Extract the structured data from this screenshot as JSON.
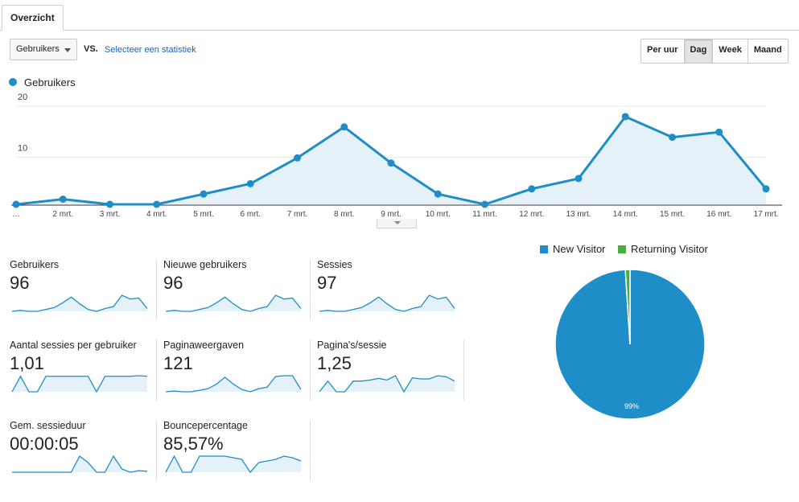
{
  "tab": {
    "label": "Overzicht"
  },
  "toolbar": {
    "metric_select": "Gebruikers",
    "vs_label": "VS.",
    "select_metric_link": "Selecteer een statistiek",
    "period_buttons": [
      "Per uur",
      "Dag",
      "Week",
      "Maand"
    ],
    "active_period": "Dag"
  },
  "colors": {
    "accent": "#1f8dc8",
    "area_fill": "#e5f1f9",
    "new_visitor": "#1f8dc8",
    "returning_visitor": "#4cae3e"
  },
  "chart_data": [
    {
      "type": "area",
      "legend": [
        "Gebruikers"
      ],
      "categories": [
        "…",
        "2 mrt.",
        "3 mrt.",
        "4 mrt.",
        "5 mrt.",
        "6 mrt.",
        "7 mrt.",
        "8 mrt.",
        "9 mrt.",
        "10 mrt.",
        "11 mrt.",
        "12 mrt.",
        "13 mrt.",
        "14 mrt.",
        "15 mrt.",
        "16 mrt.",
        "17 mrt."
      ],
      "series": [
        {
          "name": "Gebruikers",
          "values": [
            0,
            1,
            0,
            0,
            2,
            4,
            9,
            15,
            8,
            2,
            0,
            3,
            5,
            17,
            13,
            14,
            3
          ]
        }
      ],
      "y_ticks": [
        "20",
        "10"
      ],
      "ylim": [
        0,
        20
      ],
      "grid": true
    },
    {
      "type": "pie",
      "legend": [
        "New Visitor",
        "Returning Visitor"
      ],
      "labels": [
        "New Visitor",
        "Returning Visitor"
      ],
      "values": [
        99,
        1
      ],
      "slice_label": "99%"
    }
  ],
  "metrics": [
    {
      "label": "Gebruikers",
      "value": "96",
      "spark": [
        0,
        1,
        0,
        0,
        2,
        4,
        9,
        15,
        8,
        2,
        0,
        3,
        5,
        17,
        13,
        14,
        3
      ]
    },
    {
      "label": "Nieuwe gebruikers",
      "value": "96",
      "spark": [
        0,
        1,
        0,
        0,
        2,
        4,
        9,
        15,
        8,
        2,
        0,
        3,
        5,
        17,
        13,
        14,
        3
      ]
    },
    {
      "label": "Sessies",
      "value": "97",
      "spark": [
        0,
        1,
        0,
        0,
        2,
        4,
        9,
        15,
        8,
        2,
        0,
        3,
        5,
        17,
        13,
        15,
        3
      ]
    },
    {
      "label": "Aantal sessies per gebruiker",
      "value": "1,01",
      "spark": [
        0,
        1,
        0,
        0,
        1,
        1,
        1,
        1,
        1,
        1,
        0,
        1,
        1,
        1,
        1,
        1.04,
        1
      ]
    },
    {
      "label": "Paginaweergaven",
      "value": "121",
      "spark": [
        0,
        1,
        0,
        0,
        2,
        4,
        10,
        19,
        10,
        3,
        0,
        4,
        6,
        20,
        21,
        21,
        3
      ]
    },
    {
      "label": "Pagina's/sessie",
      "value": "1,25",
      "spark": [
        0,
        1,
        0,
        0,
        1,
        1,
        1.1,
        1.25,
        1.1,
        1.5,
        0,
        1.3,
        1.2,
        1.2,
        1.5,
        1.4,
        1
      ]
    },
    {
      "label": "Gem. sessieduur",
      "value": "00:00:05",
      "spark": [
        0,
        0,
        0,
        0,
        0,
        0,
        0,
        0,
        5,
        3,
        0,
        0,
        5,
        1,
        0,
        0.5,
        0.3
      ]
    },
    {
      "label": "Bouncepercentage",
      "value": "85,57%",
      "spark": [
        0,
        100,
        0,
        0,
        100,
        100,
        100,
        100,
        90,
        80,
        0,
        60,
        70,
        80,
        100,
        90,
        70
      ]
    }
  ]
}
